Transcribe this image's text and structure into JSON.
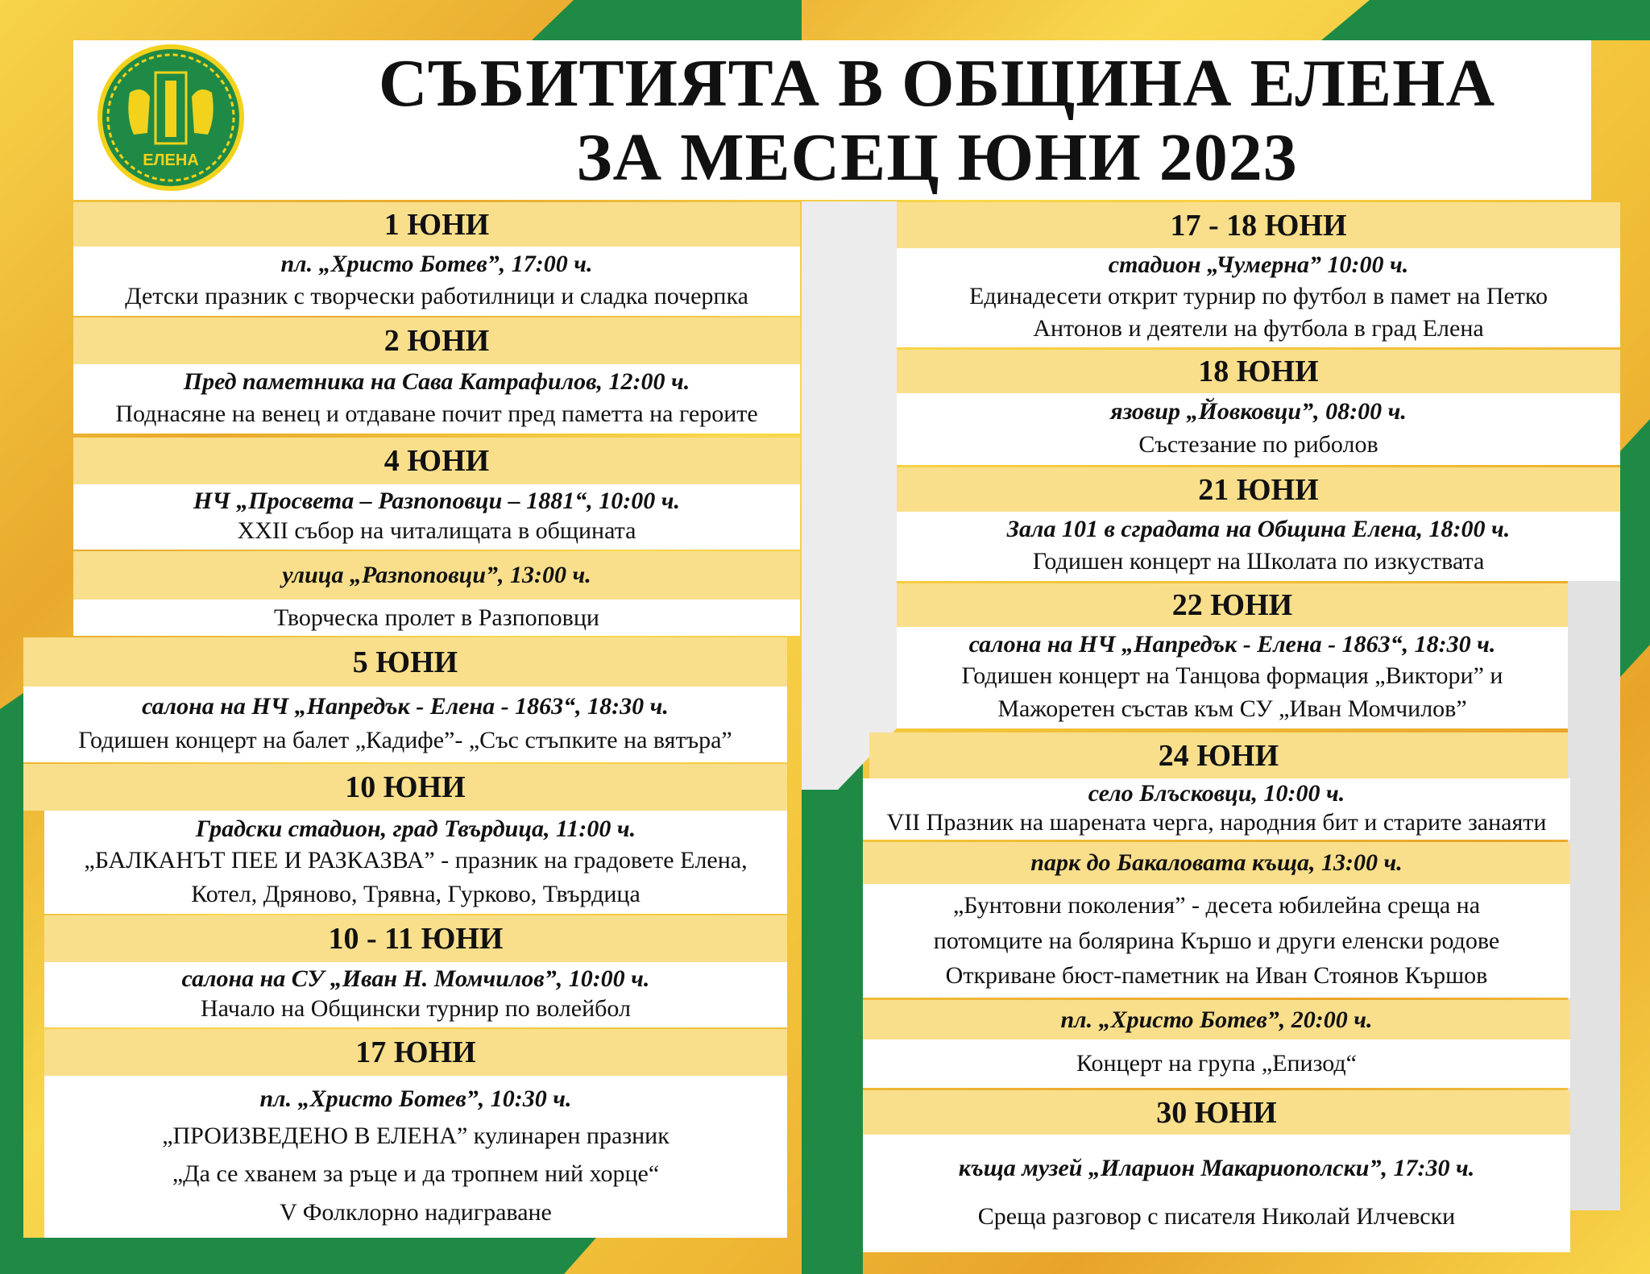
{
  "header": {
    "title_line1": "СЪБИТИЯТА В ОБЩИНА ЕЛЕНА",
    "title_line2": "ЗА МЕСЕЦ ЮНИ 2023",
    "logo_text": "ЕЛЕНА"
  },
  "colors": {
    "green": "#1f8a45",
    "gold": "#f2c23a",
    "band_yellow": "#f9df8c",
    "white": "#ffffff"
  },
  "left": [
    {
      "kind": "date",
      "text": "1 ЮНИ"
    },
    {
      "kind": "info",
      "venue": "пл. „Христо Ботев”, 17:00 ч.",
      "lines": [
        "Детски празник с творчески работилници и сладка почерпка"
      ]
    },
    {
      "kind": "date",
      "text": "2 ЮНИ"
    },
    {
      "kind": "info",
      "venue": "Пред паметника на Сава Катрафилов, 12:00 ч.",
      "lines": [
        "Поднасяне на венец и отдаване почит пред паметта на героите"
      ]
    },
    {
      "kind": "date",
      "text": "4 ЮНИ"
    },
    {
      "kind": "info",
      "venue": "НЧ „Просвета – Разпоповци – 1881“, 10:00 ч.",
      "lines": [
        "XXII събор на читалищата в общината"
      ]
    },
    {
      "kind": "vband",
      "text": "улица „Разпоповци”, 13:00 ч."
    },
    {
      "kind": "info",
      "lines": [
        "Творческа пролет в Разпоповци"
      ]
    },
    {
      "kind": "date",
      "text": "5 ЮНИ"
    },
    {
      "kind": "info",
      "venue": "салона на НЧ „Напредък - Елена - 1863“, 18:30 ч.",
      "lines": [
        "Годишен концерт на балет „Кадифе”- „Със стъпките на вятъра”"
      ]
    },
    {
      "kind": "date",
      "text": "10 ЮНИ"
    },
    {
      "kind": "info",
      "venue": "Градски стадион, град Твърдица, 11:00 ч.",
      "lines": [
        "„БАЛКАНЪТ ПЕЕ И РАЗКАЗВА” - празник на градовете Елена,",
        "Котел, Дряново, Трявна, Гурково, Твърдица"
      ]
    },
    {
      "kind": "date",
      "text": "10 - 11 ЮНИ"
    },
    {
      "kind": "info",
      "venue": "салона на СУ „Иван Н. Момчилов”, 10:00 ч.",
      "lines": [
        "Начало на Общински турнир по волейбол"
      ]
    },
    {
      "kind": "date",
      "text": "17 ЮНИ"
    },
    {
      "kind": "info",
      "venue": "пл. „Христо Ботев”, 10:30 ч.",
      "lines": [
        "„ПРОИЗВЕДЕНО В ЕЛЕНА” кулинарен празник",
        "„Да се хванем за ръце и да тропнем ний хорце“",
        "V Фолклорно надиграване"
      ]
    }
  ],
  "right": [
    {
      "kind": "date",
      "text": "17 - 18 ЮНИ"
    },
    {
      "kind": "info",
      "venue": "стадион „Чумерна” 10:00 ч.",
      "lines": [
        "Единадесети открит турнир по футбол в памет на Петко",
        "Антонов и деятели на футбола в град Елена"
      ]
    },
    {
      "kind": "date",
      "text": "18 ЮНИ"
    },
    {
      "kind": "info",
      "venue": "язовир „Йовковци”, 08:00 ч.",
      "lines": [
        "Състезание по риболов"
      ]
    },
    {
      "kind": "date",
      "text": "21 ЮНИ"
    },
    {
      "kind": "info",
      "venue": "Зала 101 в сградата на Община Елена, 18:00 ч.",
      "lines": [
        "Годишен концерт на Школата по изкуствата"
      ]
    },
    {
      "kind": "date",
      "text": "22 ЮНИ"
    },
    {
      "kind": "info",
      "venue": "салона на НЧ „Напредък - Елена - 1863“, 18:30 ч.",
      "lines": [
        "Годишен концерт на Танцова формация „Виктори” и",
        "Мажоретен състав към СУ „Иван Момчилов”"
      ]
    },
    {
      "kind": "date",
      "text": "24 ЮНИ"
    },
    {
      "kind": "info",
      "venue": "село Блъсковци, 10:00 ч.",
      "lines": [
        "VII Празник на шарената черга, народния бит и старите занаяти"
      ]
    },
    {
      "kind": "vband",
      "text": "парк до Бакаловата къща, 13:00 ч."
    },
    {
      "kind": "info",
      "lines": [
        "„Бунтовни поколения” - десета юбилейна среща на",
        "потомците на болярина Кършо и други еленски родове",
        "Откриване бюст-паметник на Иван Стоянов Кършов"
      ]
    },
    {
      "kind": "vband",
      "text": "пл. „Христо Ботев”, 20:00 ч."
    },
    {
      "kind": "info",
      "lines": [
        "Концерт на група „Епизод“"
      ]
    },
    {
      "kind": "date",
      "text": "30 ЮНИ"
    },
    {
      "kind": "info",
      "venue": "къща музей „Иларион Макариополски”, 17:30 ч.",
      "lines": [
        "Среща разговор с писателя Николай Илчевски"
      ]
    }
  ]
}
